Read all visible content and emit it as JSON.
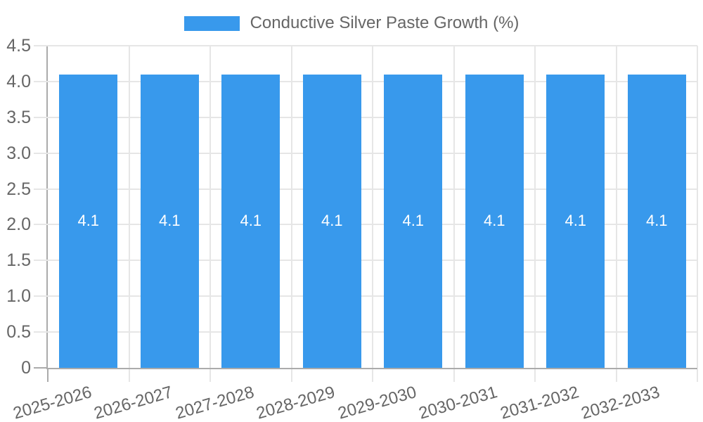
{
  "legend": {
    "label": "Conductive Silver Paste Growth (%)"
  },
  "chart_data": {
    "type": "bar",
    "title": "",
    "legend_entries": [
      "Conductive Silver Paste Growth (%)"
    ],
    "legend_position": "top",
    "categories": [
      "2025-2026",
      "2026-2027",
      "2027-2028",
      "2028-2029",
      "2029-2030",
      "2030-2031",
      "2031-2032",
      "2032-2033"
    ],
    "series": [
      {
        "name": "Conductive Silver Paste Growth (%)",
        "values": [
          4.1,
          4.1,
          4.1,
          4.1,
          4.1,
          4.1,
          4.1,
          4.1
        ]
      }
    ],
    "bar_value_labels": [
      "4.1",
      "4.1",
      "4.1",
      "4.1",
      "4.1",
      "4.1",
      "4.1",
      "4.1"
    ],
    "xlabel": "",
    "ylabel": "",
    "ylim": [
      0,
      4.5
    ],
    "yticks": [
      {
        "value": 4.5,
        "label": "4.5"
      },
      {
        "value": 4.0,
        "label": "4.0"
      },
      {
        "value": 3.5,
        "label": "3.5"
      },
      {
        "value": 3.0,
        "label": "3.0"
      },
      {
        "value": 2.5,
        "label": "2.5"
      },
      {
        "value": 2.0,
        "label": "2.0"
      },
      {
        "value": 1.5,
        "label": "1.5"
      },
      {
        "value": 1.0,
        "label": "1.0"
      },
      {
        "value": 0.5,
        "label": "0.5"
      },
      {
        "value": 0,
        "label": "0"
      }
    ],
    "grid": true,
    "colors": {
      "bar": "#3899ec",
      "grid": "#e6e6e6",
      "axis": "#ababab",
      "text": "#666666",
      "bar_label": "#ffffff",
      "background": "#ffffff"
    }
  }
}
